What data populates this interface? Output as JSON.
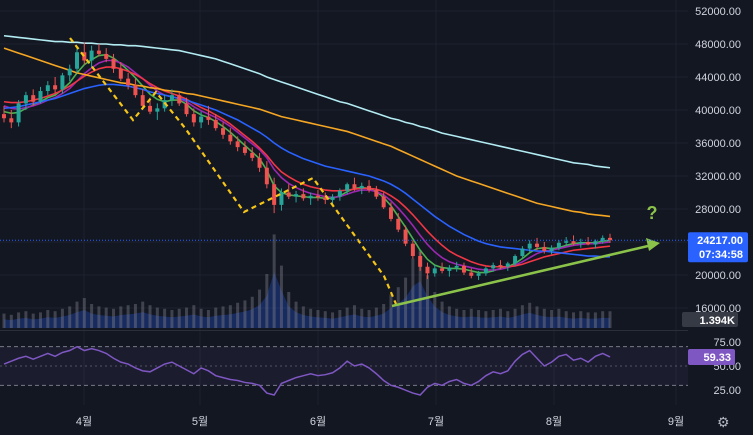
{
  "chart_data": {
    "type": "candlestick",
    "price_axis": {
      "ticks": [
        "52000.00",
        "48000.00",
        "44000.00",
        "40000.00",
        "36000.00",
        "32000.00",
        "28000.00",
        "24000.00",
        "20000.00",
        "16000.00"
      ],
      "tick_values": [
        52000,
        48000,
        44000,
        40000,
        36000,
        32000,
        28000,
        24000,
        20000,
        16000
      ],
      "range": [
        14000,
        53000
      ]
    },
    "time_axis": {
      "labels": [
        "4월",
        "5월",
        "6월",
        "7월",
        "8월",
        "9월"
      ]
    },
    "current_price": {
      "label": "24217.00",
      "countdown": "07:34:58",
      "value": 24217,
      "color": "#2962ff"
    },
    "volume_tag": {
      "label": "1.394K",
      "color": "#363a45"
    },
    "rsi_panel": {
      "ticks": [
        "75.00",
        "50.00",
        "25.00"
      ],
      "tick_values": [
        75,
        50,
        25
      ],
      "bands": [
        70,
        30
      ],
      "current_label": "59.33",
      "current_value": 59.33,
      "color": "#7e57c2"
    },
    "annotation": {
      "text": "?",
      "color": "#8bc34a"
    },
    "candles": [
      [
        39500,
        40500,
        38500,
        39000
      ],
      [
        39000,
        40000,
        37800,
        38500
      ],
      [
        38500,
        41200,
        38000,
        40800
      ],
      [
        40800,
        42200,
        40000,
        41800
      ],
      [
        41800,
        42500,
        40500,
        41000
      ],
      [
        41000,
        42800,
        40800,
        42300
      ],
      [
        42300,
        43500,
        41800,
        43000
      ],
      [
        43000,
        44000,
        42000,
        42500
      ],
      [
        42500,
        44500,
        42000,
        44200
      ],
      [
        44200,
        45500,
        43500,
        45000
      ],
      [
        45000,
        47500,
        44500,
        47000
      ],
      [
        47000,
        48200,
        45500,
        46000
      ],
      [
        46000,
        47800,
        45200,
        47200
      ],
      [
        47200,
        48000,
        46500,
        46800
      ],
      [
        46800,
        47500,
        45800,
        46200
      ],
      [
        46200,
        46800,
        44500,
        45000
      ],
      [
        45000,
        45800,
        43500,
        43800
      ],
      [
        43800,
        44500,
        42500,
        43000
      ],
      [
        43000,
        43800,
        41500,
        41800
      ],
      [
        41800,
        42500,
        40200,
        40500
      ],
      [
        40500,
        41500,
        39500,
        39800
      ],
      [
        39800,
        40800,
        38800,
        40200
      ],
      [
        40200,
        41800,
        39800,
        41200
      ],
      [
        41200,
        42500,
        40500,
        41800
      ],
      [
        41800,
        42200,
        40500,
        40800
      ],
      [
        40800,
        41500,
        39200,
        39500
      ],
      [
        39500,
        40200,
        38000,
        38500
      ],
      [
        38500,
        39800,
        37800,
        39200
      ],
      [
        39200,
        40500,
        38200,
        38800
      ],
      [
        38800,
        39500,
        37500,
        37800
      ],
      [
        37800,
        38500,
        36500,
        37000
      ],
      [
        37000,
        37800,
        35800,
        36200
      ],
      [
        36200,
        36800,
        35000,
        35500
      ],
      [
        35500,
        36200,
        34500,
        34800
      ],
      [
        34800,
        35500,
        33800,
        34200
      ],
      [
        34200,
        34800,
        32500,
        33000
      ],
      [
        33000,
        33800,
        30500,
        31000
      ],
      [
        31000,
        31800,
        27500,
        28500
      ],
      [
        28500,
        30500,
        27800,
        30000
      ],
      [
        30000,
        31000,
        29200,
        29500
      ],
      [
        29500,
        30200,
        28800,
        29800
      ],
      [
        29800,
        30500,
        29000,
        29300
      ],
      [
        29300,
        30000,
        28500,
        29600
      ],
      [
        29600,
        30300,
        29000,
        29400
      ],
      [
        29400,
        30000,
        28600,
        29100
      ],
      [
        29100,
        29800,
        28500,
        29500
      ],
      [
        29500,
        30500,
        29000,
        30200
      ],
      [
        30200,
        31200,
        29800,
        31000
      ],
      [
        31000,
        31800,
        30200,
        30500
      ],
      [
        30500,
        31200,
        29800,
        30800
      ],
      [
        30800,
        31500,
        30000,
        30300
      ],
      [
        30300,
        30800,
        29200,
        29500
      ],
      [
        29500,
        30000,
        28000,
        28200
      ],
      [
        28200,
        28800,
        26500,
        26800
      ],
      [
        26800,
        27500,
        25200,
        25500
      ],
      [
        25500,
        26000,
        23500,
        23800
      ],
      [
        23800,
        24200,
        22000,
        22300
      ],
      [
        22300,
        22800,
        20500,
        21000
      ],
      [
        21000,
        21500,
        19500,
        20200
      ],
      [
        20200,
        21200,
        19800,
        20800
      ],
      [
        20800,
        21500,
        20200,
        20500
      ],
      [
        20500,
        21200,
        19800,
        20900
      ],
      [
        20900,
        21600,
        20400,
        21100
      ],
      [
        21100,
        21500,
        20000,
        20300
      ],
      [
        20300,
        20800,
        19600,
        19900
      ],
      [
        19900,
        20500,
        19400,
        20200
      ],
      [
        20200,
        21000,
        19900,
        20800
      ],
      [
        20800,
        21500,
        20400,
        21200
      ],
      [
        21200,
        21800,
        20700,
        21000
      ],
      [
        21000,
        21600,
        20500,
        21400
      ],
      [
        21400,
        22500,
        21100,
        22300
      ],
      [
        22300,
        23500,
        22000,
        23200
      ],
      [
        23200,
        24200,
        22800,
        23800
      ],
      [
        23800,
        24500,
        23000,
        23400
      ],
      [
        23400,
        24000,
        22600,
        22900
      ],
      [
        22900,
        23600,
        22500,
        23300
      ],
      [
        23300,
        24200,
        23000,
        23900
      ],
      [
        23900,
        24600,
        23500,
        24100
      ],
      [
        24100,
        24800,
        23600,
        23800
      ],
      [
        23800,
        24400,
        23300,
        24000
      ],
      [
        24000,
        24600,
        23600,
        23700
      ],
      [
        23700,
        24300,
        23200,
        24100
      ],
      [
        24100,
        24800,
        23800,
        24500
      ],
      [
        24500,
        25000,
        23900,
        24217
      ]
    ],
    "volume": [
      1.2,
      1.1,
      1.3,
      1.4,
      1.2,
      1.3,
      1.5,
      1.4,
      1.6,
      1.8,
      2.2,
      2.5,
      2.0,
      1.8,
      1.7,
      1.6,
      1.8,
      1.9,
      2.0,
      2.2,
      1.9,
      1.7,
      1.6,
      1.5,
      1.6,
      1.7,
      1.9,
      1.6,
      1.5,
      1.7,
      1.8,
      1.9,
      2.1,
      2.3,
      2.6,
      3.2,
      4.5,
      7.8,
      5.2,
      3.0,
      2.2,
      1.8,
      1.6,
      1.5,
      1.4,
      1.3,
      1.5,
      1.7,
      1.9,
      1.6,
      1.5,
      1.7,
      2.0,
      2.8,
      3.4,
      4.2,
      5.8,
      6.5,
      4.4,
      3.0,
      2.2,
      1.8,
      1.6,
      1.5,
      1.6,
      1.5,
      1.4,
      1.5,
      1.6,
      1.4,
      1.6,
      1.9,
      2.1,
      1.8,
      1.6,
      1.5,
      1.6,
      1.4,
      1.3,
      1.4,
      1.3,
      1.3,
      1.4,
      1.394
    ],
    "rsi": [
      52,
      55,
      58,
      60,
      57,
      60,
      63,
      60,
      64,
      66,
      70,
      66,
      68,
      66,
      63,
      58,
      54,
      52,
      48,
      45,
      44,
      48,
      52,
      54,
      50,
      46,
      42,
      48,
      45,
      40,
      38,
      36,
      35,
      33,
      32,
      30,
      22,
      20,
      32,
      35,
      38,
      40,
      42,
      40,
      41,
      43,
      48,
      55,
      50,
      52,
      48,
      42,
      35,
      30,
      28,
      25,
      22,
      20,
      28,
      32,
      30,
      34,
      36,
      32,
      30,
      34,
      40,
      44,
      42,
      45,
      55,
      62,
      66,
      58,
      50,
      54,
      60,
      62,
      56,
      58,
      54,
      60,
      63,
      59.33
    ],
    "ma_series": [
      {
        "name": "",
        "color": "#4caf50",
        "values": [
          39800,
          39600,
          39700,
          40200,
          40600,
          41000,
          41500,
          41800,
          42500,
          43300,
          44500,
          45500,
          46100,
          46600,
          46700,
          46300,
          45600,
          44800,
          43900,
          42900,
          41900,
          41300,
          41000,
          41200,
          41200,
          40700,
          39900,
          39400,
          39100,
          38600,
          38000,
          37300,
          36500,
          35700,
          34900,
          34100,
          32700,
          30800,
          30000,
          29700,
          29600,
          29500,
          29400,
          29400,
          29300,
          29300,
          29600,
          30100,
          30500,
          30600,
          30500,
          30100,
          29400,
          28400,
          27100,
          25800,
          24400,
          23000,
          21900,
          21200,
          20900,
          20800,
          20800,
          20700,
          20500,
          20300,
          20300,
          20500,
          20800,
          21000,
          21400,
          22000,
          22700,
          23200,
          23300,
          23200,
          23300,
          23600,
          23800,
          23900,
          23900,
          23900,
          24100,
          24200
        ]
      },
      {
        "name": "",
        "color": "#9c27b0",
        "values": [
          40500,
          40200,
          40100,
          40300,
          40500,
          40800,
          41200,
          41500,
          42000,
          42600,
          43500,
          44400,
          45100,
          45700,
          46000,
          46000,
          45700,
          45200,
          44500,
          43800,
          43000,
          42300,
          41800,
          41600,
          41400,
          41000,
          40400,
          39900,
          39500,
          39100,
          38600,
          38000,
          37300,
          36600,
          35900,
          35200,
          34200,
          32800,
          31800,
          31100,
          30600,
          30200,
          29900,
          29700,
          29500,
          29400,
          29500,
          29800,
          30100,
          30300,
          30300,
          30100,
          29700,
          29000,
          28100,
          27100,
          26000,
          24800,
          23700,
          22800,
          22100,
          21600,
          21300,
          21100,
          20900,
          20700,
          20600,
          20600,
          20700,
          20900,
          21200,
          21600,
          22100,
          22600,
          22900,
          23000,
          23200,
          23400,
          23600,
          23700,
          23800,
          23800,
          23900,
          24000
        ]
      },
      {
        "name": "",
        "color": "#f23645",
        "values": [
          41000,
          40900,
          40900,
          41000,
          41200,
          41400,
          41700,
          42000,
          42400,
          42900,
          43500,
          44100,
          44600,
          45000,
          45200,
          45200,
          45000,
          44700,
          44300,
          43800,
          43200,
          42700,
          42300,
          42000,
          41700,
          41300,
          40800,
          40300,
          39900,
          39400,
          38900,
          38300,
          37600,
          36900,
          36200,
          35400,
          34500,
          33400,
          32500,
          31900,
          31400,
          31000,
          30700,
          30500,
          30300,
          30200,
          30200,
          30300,
          30400,
          30500,
          30500,
          30400,
          30100,
          29600,
          29000,
          28200,
          27300,
          26300,
          25300,
          24400,
          23600,
          22900,
          22400,
          22000,
          21600,
          21300,
          21100,
          21000,
          21000,
          21000,
          21100,
          21300,
          21600,
          21900,
          22200,
          22400,
          22600,
          22800,
          23000,
          23100,
          23200,
          23300,
          23400,
          23500
        ]
      },
      {
        "name": "",
        "color": "#2962ff",
        "values": [
          40200,
          40300,
          40400,
          40600,
          40800,
          41000,
          41200,
          41400,
          41700,
          42000,
          42300,
          42600,
          42800,
          43000,
          43100,
          43100,
          43000,
          42900,
          42700,
          42500,
          42200,
          42000,
          41800,
          41600,
          41400,
          41200,
          40900,
          40600,
          40300,
          40000,
          39600,
          39200,
          38800,
          38300,
          37800,
          37300,
          36700,
          36000,
          35400,
          34900,
          34500,
          34100,
          33800,
          33500,
          33200,
          33000,
          32800,
          32600,
          32400,
          32200,
          32000,
          31700,
          31400,
          31000,
          30500,
          29900,
          29200,
          28500,
          27800,
          27100,
          26500,
          25900,
          25400,
          24900,
          24500,
          24100,
          23800,
          23600,
          23400,
          23300,
          23200,
          23100,
          23000,
          22900,
          22900,
          22800,
          22700,
          22600,
          22500,
          22400,
          22300,
          22300,
          22200,
          22200
        ]
      },
      {
        "name": "",
        "color": "#f5a623",
        "values": [
          47500,
          47200,
          46900,
          46600,
          46300,
          46000,
          45700,
          45400,
          45100,
          44800,
          44500,
          44300,
          44100,
          43900,
          43700,
          43500,
          43300,
          43200,
          43000,
          42900,
          42700,
          42600,
          42400,
          42300,
          42200,
          42000,
          41900,
          41700,
          41500,
          41300,
          41100,
          40900,
          40700,
          40500,
          40300,
          40100,
          39800,
          39500,
          39200,
          39000,
          38800,
          38600,
          38400,
          38200,
          38000,
          37800,
          37600,
          37400,
          37100,
          36800,
          36500,
          36200,
          35900,
          35600,
          35200,
          34800,
          34400,
          34000,
          33600,
          33200,
          32800,
          32400,
          32000,
          31700,
          31400,
          31100,
          30800,
          30500,
          30200,
          29900,
          29600,
          29300,
          29000,
          28700,
          28500,
          28300,
          28100,
          27900,
          27700,
          27600,
          27400,
          27300,
          27200,
          27100
        ]
      },
      {
        "name": "",
        "color": "#b2ebf2",
        "values": [
          49000,
          48900,
          48800,
          48700,
          48600,
          48500,
          48400,
          48300,
          48300,
          48200,
          48200,
          48100,
          48100,
          48000,
          48000,
          47900,
          47900,
          47800,
          47800,
          47700,
          47600,
          47500,
          47400,
          47300,
          47200,
          47000,
          46800,
          46600,
          46400,
          46200,
          45900,
          45600,
          45300,
          45000,
          44700,
          44400,
          44000,
          43700,
          43400,
          43100,
          42800,
          42500,
          42200,
          41900,
          41600,
          41300,
          41000,
          40800,
          40500,
          40200,
          39900,
          39600,
          39300,
          39000,
          38800,
          38500,
          38300,
          38000,
          37800,
          37500,
          37200,
          37000,
          36800,
          36600,
          36400,
          36200,
          36000,
          35800,
          35600,
          35400,
          35200,
          35000,
          34800,
          34600,
          34400,
          34200,
          34000,
          33800,
          33600,
          33500,
          33400,
          33200,
          33100,
          33000
        ]
      }
    ]
  }
}
